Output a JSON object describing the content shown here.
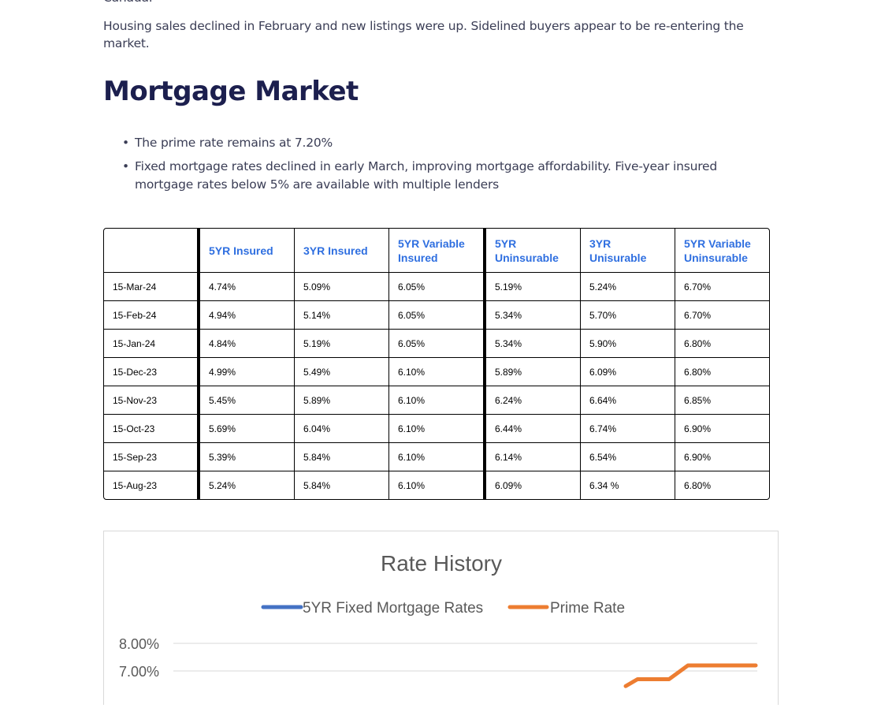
{
  "top_cut_text": "Canada.",
  "intro": "Housing sales declined in February and new listings were up. Sidelined buyers appear to be re-entering the market.",
  "heading": "Mortgage Market",
  "bullets": [
    "The prime rate remains at 7.20%",
    "Fixed mortgage rates declined in early March, improving mortgage affordability. Five-year insured mortgage rates below 5% are available with multiple lenders"
  ],
  "table": {
    "headers": [
      "",
      "5YR Insured",
      "3YR Insured",
      "5YR Variable Insured",
      "5YR Uninsurable",
      "3YR Unisurable",
      "5YR Variable Uninsurable"
    ],
    "rows": [
      [
        "15-Mar-24",
        "4.74%",
        "5.09%",
        "6.05%",
        "5.19%",
        "5.24%",
        "6.70%"
      ],
      [
        "15-Feb-24",
        "4.94%",
        "5.14%",
        "6.05%",
        "5.34%",
        "5.70%",
        "6.70%"
      ],
      [
        "15-Jan-24",
        "4.84%",
        "5.19%",
        "6.05%",
        "5.34%",
        "5.90%",
        "6.80%"
      ],
      [
        "15-Dec-23",
        "4.99%",
        "5.49%",
        "6.10%",
        "5.89%",
        "6.09%",
        "6.80%"
      ],
      [
        "15-Nov-23",
        "5.45%",
        "5.89%",
        "6.10%",
        "6.24%",
        "6.64%",
        "6.85%"
      ],
      [
        "15-Oct-23",
        "5.69%",
        "6.04%",
        "6.10%",
        "6.44%",
        "6.74%",
        "6.90%"
      ],
      [
        "15-Sep-23",
        "5.39%",
        "5.84%",
        "6.10%",
        "6.14%",
        "6.54%",
        "6.90%"
      ],
      [
        "15-Aug-23",
        "5.24%",
        "5.84%",
        "6.10%",
        "6.09%",
        "6.34 %",
        "6.80%"
      ]
    ]
  },
  "chart_data": {
    "type": "line",
    "title": "Rate History",
    "legend_position": "top",
    "grid": true,
    "yticks": [
      "8.00%",
      "7.00%"
    ],
    "series": [
      {
        "name": "5YR Fixed Mortgage Rates",
        "color": "#4472c4",
        "values": []
      },
      {
        "name": "Prime Rate",
        "color": "#ed7d31",
        "visible_values": [
          6.45,
          6.7,
          6.7,
          6.95,
          7.2,
          7.2
        ]
      }
    ]
  }
}
